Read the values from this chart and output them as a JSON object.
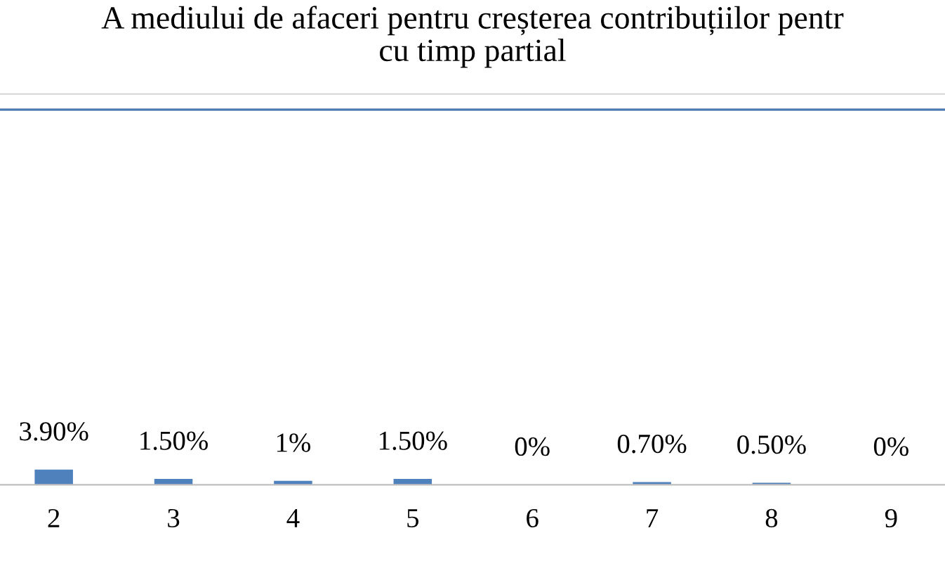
{
  "chart_data": {
    "type": "bar",
    "title": "A mediului de afaceri pentru creșterea contribuțiilor pentr\ncu timp partial",
    "categories": [
      "2",
      "3",
      "4",
      "5",
      "6",
      "7",
      "8",
      "9"
    ],
    "values": [
      3.9,
      1.5,
      1,
      1.5,
      0,
      0.7,
      0.5,
      0
    ],
    "value_labels": [
      "3.90%",
      "1.50%",
      "1%",
      "1.50%",
      "0%",
      "0.70%",
      "0.50%",
      "0%"
    ],
    "color": "#4f81bd",
    "ylim": [
      0,
      100
    ],
    "tick_labels": "x",
    "grid": false,
    "legend": false,
    "ref_lines": [
      {
        "axis": "y",
        "value": 96,
        "color": "#4a7ab0"
      }
    ]
  }
}
